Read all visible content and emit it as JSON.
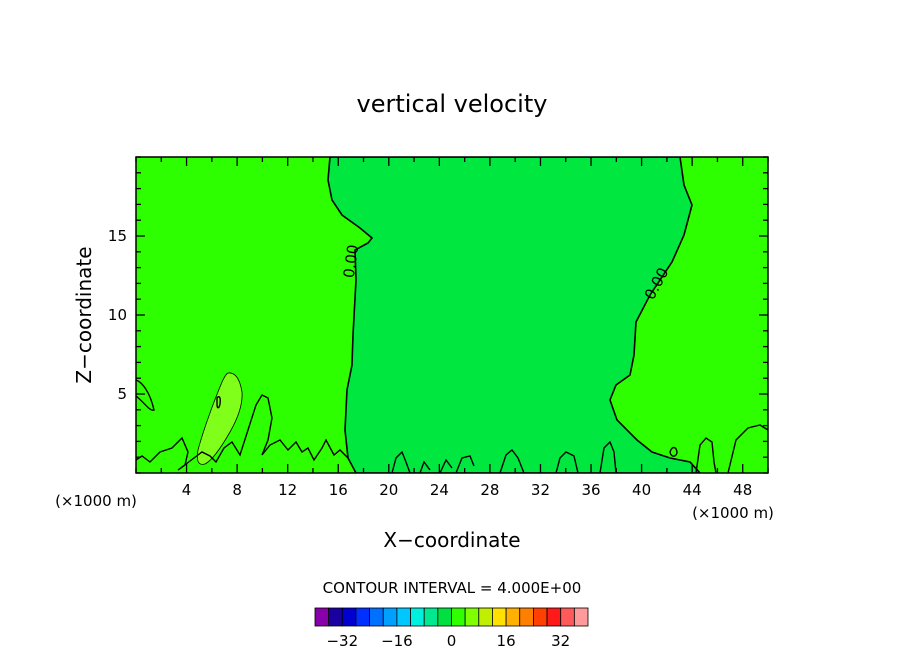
{
  "chart_data": {
    "type": "heatmap",
    "title": "vertical velocity",
    "xlabel": "X−coordinate",
    "ylabel": "Z−coordinate",
    "x_unit": "(×1000 m)",
    "z_unit": "(×1000 m)",
    "xlim": [
      0,
      50
    ],
    "ylim": [
      0,
      20
    ],
    "x_ticks": [
      4,
      8,
      12,
      16,
      20,
      24,
      28,
      32,
      36,
      40,
      44,
      48
    ],
    "y_ticks": [
      5,
      10,
      15
    ],
    "contour_labels": [
      "0.00",
      "0.00"
    ],
    "contour_interval_text": "CONTOUR INTERVAL = 4.000E+00",
    "colorbar": {
      "ticks": [
        -32,
        -16,
        0,
        16,
        32
      ],
      "tick_text": [
        "−32",
        "−16",
        "0",
        "16",
        "32"
      ],
      "min": -40,
      "max": 40,
      "colors": [
        "#8800aa",
        "#1a00a0",
        "#0000d0",
        "#0030ff",
        "#0070ff",
        "#00a0ff",
        "#00c8ff",
        "#00f0e0",
        "#00e890",
        "#00e040",
        "#2fff00",
        "#80ff00",
        "#c0f000",
        "#ffe000",
        "#ffb000",
        "#ff8000",
        "#ff4000",
        "#ff1a1a",
        "#ff5a5a",
        "#ff9a9a"
      ]
    },
    "regions": {
      "positive_fill": "#2eff00",
      "near_zero_fill": "#00e840",
      "updraft_fill": "#80ff1a"
    }
  }
}
